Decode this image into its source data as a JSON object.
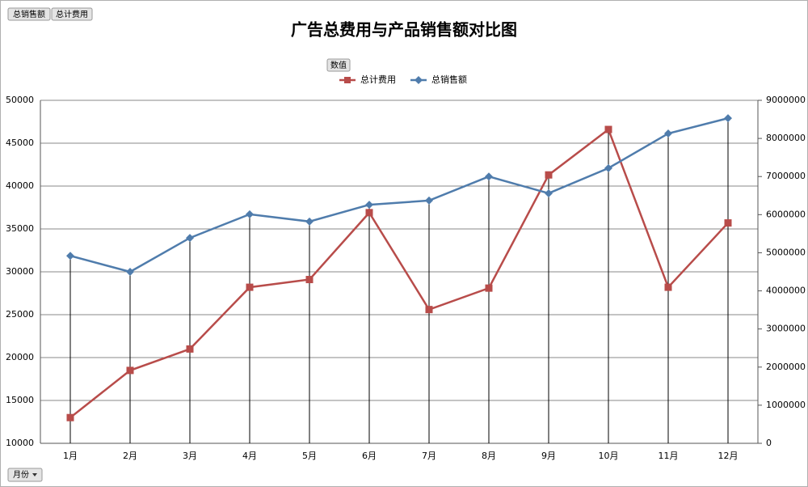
{
  "chart_data": {
    "type": "line",
    "title": "广告总费用与产品销售额对比图",
    "field_buttons": {
      "top": [
        "总销售额",
        "总计费用"
      ],
      "values": "数值",
      "axis": "月份"
    },
    "categories": [
      "1月",
      "2月",
      "3月",
      "4月",
      "5月",
      "6月",
      "7月",
      "8月",
      "9月",
      "10月",
      "11月",
      "12月"
    ],
    "series": [
      {
        "name": "总计费用",
        "color": "#b84c4a",
        "marker": "square",
        "values": [
          13000,
          18500,
          21000,
          28200,
          29100,
          36900,
          25600,
          28100,
          41300,
          46600,
          28200,
          35700
        ]
      },
      {
        "name": "总销售额",
        "color": "#4f7cac",
        "marker": "diamond",
        "axis": "y2",
        "values": [
          4920000,
          4500000,
          5390000,
          6010000,
          5820000,
          6260000,
          6370000,
          7000000,
          6560000,
          7220000,
          8130000,
          8530000
        ]
      }
    ],
    "ylim": [
      10000,
      50000
    ],
    "yticks": [
      10000,
      15000,
      20000,
      25000,
      30000,
      35000,
      40000,
      45000,
      50000
    ],
    "y2lim": [
      0,
      9000000
    ],
    "y2ticks": [
      0,
      1000000,
      2000000,
      3000000,
      4000000,
      5000000,
      6000000,
      7000000,
      8000000,
      9000000
    ],
    "grid": true,
    "drop_lines": true
  }
}
